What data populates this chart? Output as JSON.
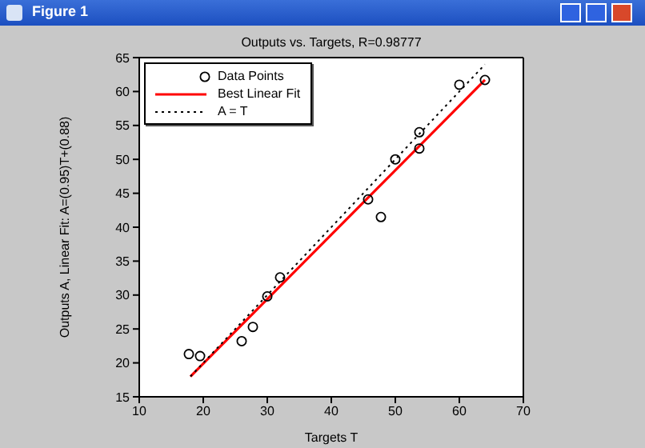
{
  "chart_data": {
    "type": "scatter",
    "title": "Outputs vs. Targets, R=0.98777",
    "xlabel": "Targets T",
    "ylabel": "Outputs A, Linear Fit: A=(0.95)T+(0.88)",
    "annotations": [
      "Figure 1"
    ],
    "series": [
      {
        "name": "Data Points",
        "color": "#000000",
        "marker": "circle",
        "x": [
          17.75,
          19.5,
          26,
          27.75,
          30,
          32,
          45.75,
          47.75,
          50,
          53.75,
          53.75,
          60,
          64
        ],
        "values": [
          21.3,
          21,
          23.2,
          25.3,
          29.8,
          32.6,
          44.1,
          41.5,
          50,
          51.6,
          54,
          61,
          61.7
        ]
      },
      {
        "name": "Best Linear Fit",
        "type": "line",
        "color": "#ff0000",
        "line_style": "solid",
        "x": [
          18,
          64
        ],
        "values": [
          18,
          61.7
        ]
      },
      {
        "name": "A = T",
        "type": "line",
        "color": "#000000",
        "line_style": "dotted",
        "x": [
          18,
          64
        ],
        "values": [
          18,
          64
        ]
      }
    ],
    "xlim": [
      10,
      70
    ],
    "xticks": [
      10,
      20,
      30,
      40,
      50,
      60,
      70
    ],
    "ylim": [
      15,
      65
    ],
    "yticks": [
      15,
      20,
      25,
      30,
      35,
      40,
      45,
      50,
      55,
      60,
      65
    ],
    "grid": false,
    "legend": "top left"
  }
}
